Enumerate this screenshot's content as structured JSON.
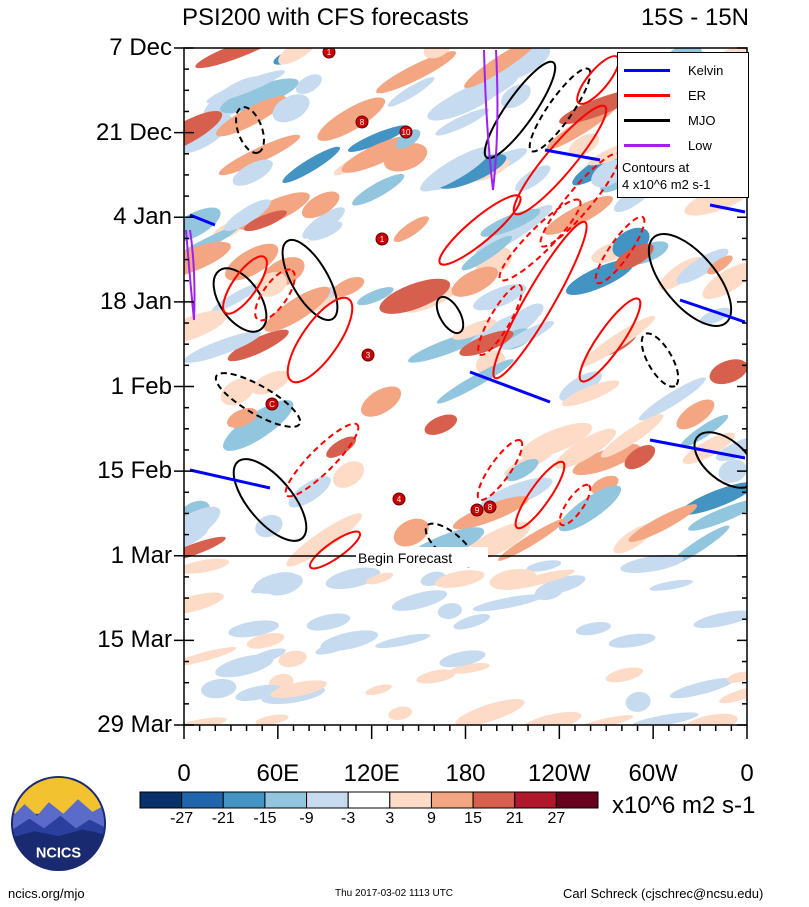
{
  "title": "PSI200 with CFS forecasts",
  "region": "15S - 15N",
  "chart_data": {
    "type": "heatmap",
    "title": "PSI200 with CFS forecasts",
    "region": "15S - 15N",
    "y_ticks": [
      "7 Dec",
      "21 Dec",
      "4 Jan",
      "18 Jan",
      "1 Feb",
      "15 Feb",
      "1 Mar",
      "15 Mar",
      "29 Mar"
    ],
    "x_ticks": [
      "0",
      "60E",
      "120E",
      "180",
      "120W",
      "60W",
      "0"
    ],
    "forecast_start": "1 Mar",
    "forecast_label": "Begin Forecast",
    "colorbar": {
      "levels": [
        "-27",
        "-21",
        "-15",
        "-9",
        "-3",
        "3",
        "9",
        "15",
        "21",
        "27"
      ],
      "colors": [
        "#08306b",
        "#2166ac",
        "#4393c3",
        "#92c5de",
        "#c6dbef",
        "#ffffff",
        "#fddbc7",
        "#f4a582",
        "#d6604d",
        "#b2182b",
        "#67001f"
      ],
      "units": "x10^6 m2 s-1"
    },
    "legend": [
      {
        "name": "Kelvin",
        "color": "#0000ff"
      },
      {
        "name": "ER",
        "color": "#ff0000"
      },
      {
        "name": "MJO",
        "color": "#000000"
      },
      {
        "name": "Low",
        "color": "#a020f0"
      }
    ],
    "contour_note": [
      "Contours at",
      "4 x10^6 m2 s-1"
    ],
    "storm_labels": [
      "1",
      "3",
      "4",
      "8",
      "9",
      "10",
      "C"
    ]
  },
  "footer": {
    "left": "ncics.org/mjo",
    "center": "Thu 2017-03-02 1113 UTC",
    "right": "Carl Schreck (cjschrec@ncsu.edu)",
    "logo_text": "NCICS"
  }
}
